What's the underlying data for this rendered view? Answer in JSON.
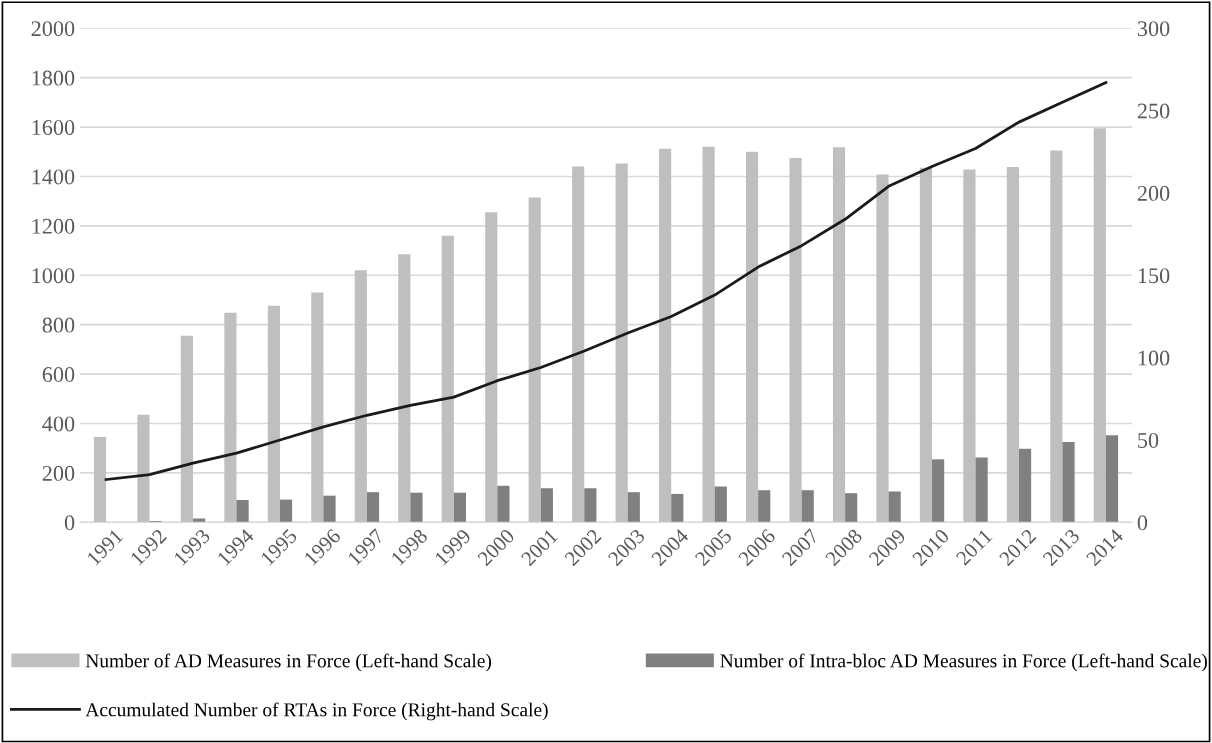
{
  "chart_data": {
    "type": "bar",
    "categories": [
      "1991",
      "1992",
      "1993",
      "1994",
      "1995",
      "1996",
      "1997",
      "1998",
      "1999",
      "2000",
      "2001",
      "2002",
      "2003",
      "2004",
      "2005",
      "2006",
      "2007",
      "2008",
      "2009",
      "2010",
      "2011",
      "2012",
      "2013",
      "2014"
    ],
    "series": [
      {
        "name": "Number of AD Measures in Force (Left-hand Scale)",
        "color": "#bfbfbf",
        "values": [
          345,
          435,
          755,
          848,
          877,
          930,
          1020,
          1085,
          1160,
          1255,
          1315,
          1440,
          1452,
          1512,
          1520,
          1500,
          1475,
          1518,
          1408,
          1435,
          1428,
          1438,
          1505,
          1595
        ]
      },
      {
        "name": "Number of Intra-bloc AD Measures in Force (Left-hand Scale)",
        "color": "#808080",
        "values": [
          0,
          5,
          15,
          90,
          92,
          108,
          122,
          120,
          120,
          148,
          138,
          138,
          122,
          115,
          145,
          130,
          130,
          118,
          125,
          255,
          262,
          298,
          325,
          352
        ]
      },
      {
        "name": "Accumulated Number of RTAs in Force (Right-hand Scale)",
        "type": "line",
        "axis": "y2",
        "color": "#1a1a1a",
        "values": [
          26,
          29,
          36,
          42,
          50,
          58,
          65,
          71,
          76,
          86,
          94,
          104,
          115,
          125,
          138,
          155,
          168,
          184,
          204,
          216,
          227,
          243,
          255,
          267
        ]
      }
    ],
    "ylim": [
      0,
      2000
    ],
    "yticks": [
      0,
      200,
      400,
      600,
      800,
      1000,
      1200,
      1400,
      1600,
      1800,
      2000
    ],
    "y2lim": [
      0,
      300
    ],
    "y2ticks": [
      0,
      50,
      100,
      150,
      200,
      250,
      300
    ],
    "grid": "y",
    "legend": "bottom"
  }
}
